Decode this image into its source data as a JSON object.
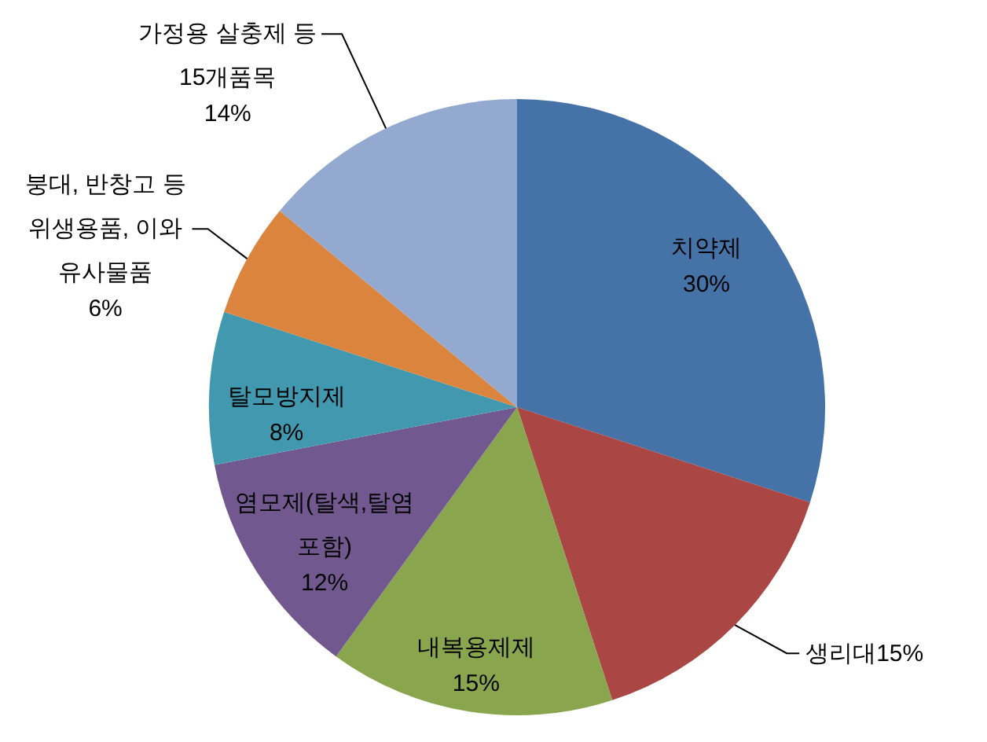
{
  "chart_data": {
    "type": "pie",
    "categories": [
      "치약제",
      "생리대",
      "내복용제제",
      "염모제(탈색,탈염 포함)",
      "탈모방지제",
      "붕대, 반창고 등 위생용품, 이와 유사물품",
      "가정용 살충제 등 15개품목"
    ],
    "values": [
      30,
      15,
      15,
      12,
      8,
      6,
      14
    ],
    "colors": [
      "#4572a7",
      "#aa4643",
      "#89a54e",
      "#71588f",
      "#4198af",
      "#db843d",
      "#93a9cf"
    ],
    "value_labels": [
      "30%",
      "15%",
      "15%",
      "12%",
      "8%",
      "6%",
      "14%"
    ]
  }
}
